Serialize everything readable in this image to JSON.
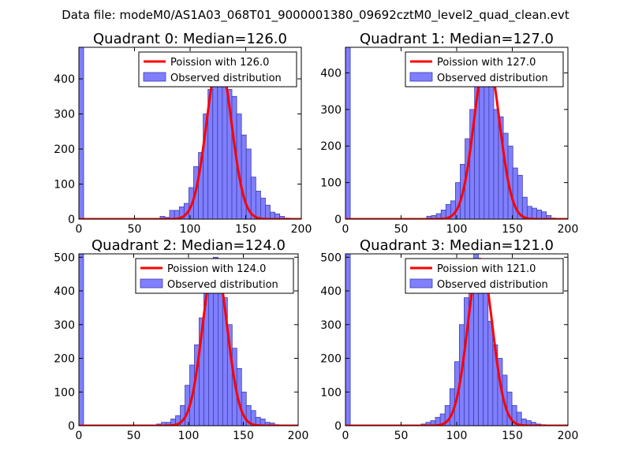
{
  "figure": {
    "suptitle": "Data file: modeM0/AS1A03_068T01_9000001380_09692cztM0_level2_quad_clean.evt"
  },
  "colors": {
    "bar_fill": "#7f7fff",
    "bar_edge": "#3f3fa8",
    "poisson_line": "#ff0000",
    "axes": "#000000"
  },
  "chart_data": [
    {
      "type": "bar",
      "title": "Quadrant 0: Median=126.0",
      "xlim": [
        0,
        200
      ],
      "ylim": [
        0,
        490
      ],
      "xticks": [
        0,
        50,
        100,
        150,
        200
      ],
      "yticks": [
        0,
        100,
        200,
        300,
        400
      ],
      "bin_width": 4.3,
      "bins": [
        0,
        73,
        77.3,
        81.6,
        86,
        90.3,
        94.6,
        98.9,
        103.2,
        107.5,
        111.8,
        116.1,
        120.4,
        124.7,
        129,
        133.3,
        137.6,
        141.9,
        146.2,
        150.5,
        154.8,
        159.1,
        163.4,
        167.7,
        172,
        176.3,
        180.6,
        184.9
      ],
      "values": [
        490,
        8,
        5,
        25,
        25,
        35,
        45,
        90,
        150,
        190,
        300,
        370,
        415,
        390,
        400,
        370,
        350,
        300,
        240,
        200,
        120,
        80,
        60,
        40,
        20,
        15,
        8,
        3
      ],
      "poisson_mean": 126.0,
      "poisson_peak": 455,
      "legend": [
        "Poission with 126.0",
        "Observed distribution"
      ],
      "legend_position": "upper right"
    },
    {
      "type": "bar",
      "title": "Quadrant 1: Median=127.0",
      "xlim": [
        0,
        200
      ],
      "ylim": [
        0,
        470
      ],
      "xticks": [
        0,
        50,
        100,
        150,
        200
      ],
      "yticks": [
        0,
        100,
        200,
        300,
        400
      ],
      "bin_width": 4.3,
      "bins": [
        0,
        73,
        77.3,
        81.6,
        86,
        90.3,
        94.6,
        98.9,
        103.2,
        107.5,
        111.8,
        116.1,
        120.4,
        124.7,
        129,
        133.3,
        137.6,
        141.9,
        146.2,
        150.5,
        154.8,
        159.1,
        163.4,
        167.7,
        172,
        176.3,
        180.6,
        184.9
      ],
      "values": [
        470,
        8,
        10,
        15,
        25,
        40,
        50,
        100,
        150,
        220,
        300,
        410,
        445,
        400,
        440,
        300,
        280,
        235,
        200,
        140,
        120,
        60,
        35,
        30,
        25,
        20,
        10,
        3
      ],
      "poisson_mean": 127.0,
      "poisson_peak": 450,
      "legend": [
        "Poission with 127.0",
        "Observed distribution"
      ],
      "legend_position": "upper right"
    },
    {
      "type": "bar",
      "title": "Quadrant 2: Median=124.0",
      "xlim": [
        0,
        200
      ],
      "ylim": [
        0,
        510
      ],
      "xticks": [
        0,
        50,
        100,
        150,
        200
      ],
      "yticks": [
        0,
        100,
        200,
        300,
        400,
        500
      ],
      "bin_width": 4.3,
      "bins": [
        0,
        71,
        75.3,
        79.6,
        83.9,
        88.2,
        92.5,
        96.8,
        101.1,
        105.4,
        109.7,
        114,
        118.3,
        122.6,
        126.9,
        131.2,
        135.5,
        139.8,
        144.1,
        148.4,
        152.7,
        157,
        161.3,
        165.6,
        169.9,
        174.2,
        178.5
      ],
      "values": [
        510,
        5,
        10,
        10,
        20,
        30,
        60,
        120,
        180,
        240,
        320,
        430,
        470,
        500,
        420,
        380,
        300,
        230,
        170,
        100,
        60,
        45,
        25,
        20,
        10,
        8,
        3
      ],
      "poisson_mean": 124.0,
      "poisson_peak": 490,
      "legend": [
        "Poission with 124.0",
        "Observed distribution"
      ],
      "legend_position": "upper right"
    },
    {
      "type": "bar",
      "title": "Quadrant 3: Median=121.0",
      "xlim": [
        0,
        200
      ],
      "ylim": [
        0,
        510
      ],
      "xticks": [
        0,
        50,
        100,
        150,
        200
      ],
      "yticks": [
        0,
        100,
        200,
        300,
        400,
        500
      ],
      "bin_width": 4.3,
      "bins": [
        0,
        68,
        72.3,
        76.6,
        80.9,
        85.2,
        89.5,
        93.8,
        98.1,
        102.4,
        106.7,
        111,
        115.3,
        119.6,
        123.9,
        128.2,
        132.5,
        136.8,
        141.1,
        145.4,
        149.7,
        154,
        158.3,
        162.6,
        166.9,
        171.2,
        175.5
      ],
      "values": [
        510,
        5,
        10,
        15,
        25,
        35,
        60,
        110,
        190,
        300,
        380,
        470,
        510,
        480,
        400,
        310,
        240,
        200,
        150,
        100,
        60,
        40,
        20,
        15,
        10,
        5,
        3
      ],
      "poisson_mean": 121.0,
      "poisson_peak": 495,
      "legend": [
        "Poission with 121.0",
        "Observed distribution"
      ],
      "legend_position": "upper right"
    }
  ]
}
